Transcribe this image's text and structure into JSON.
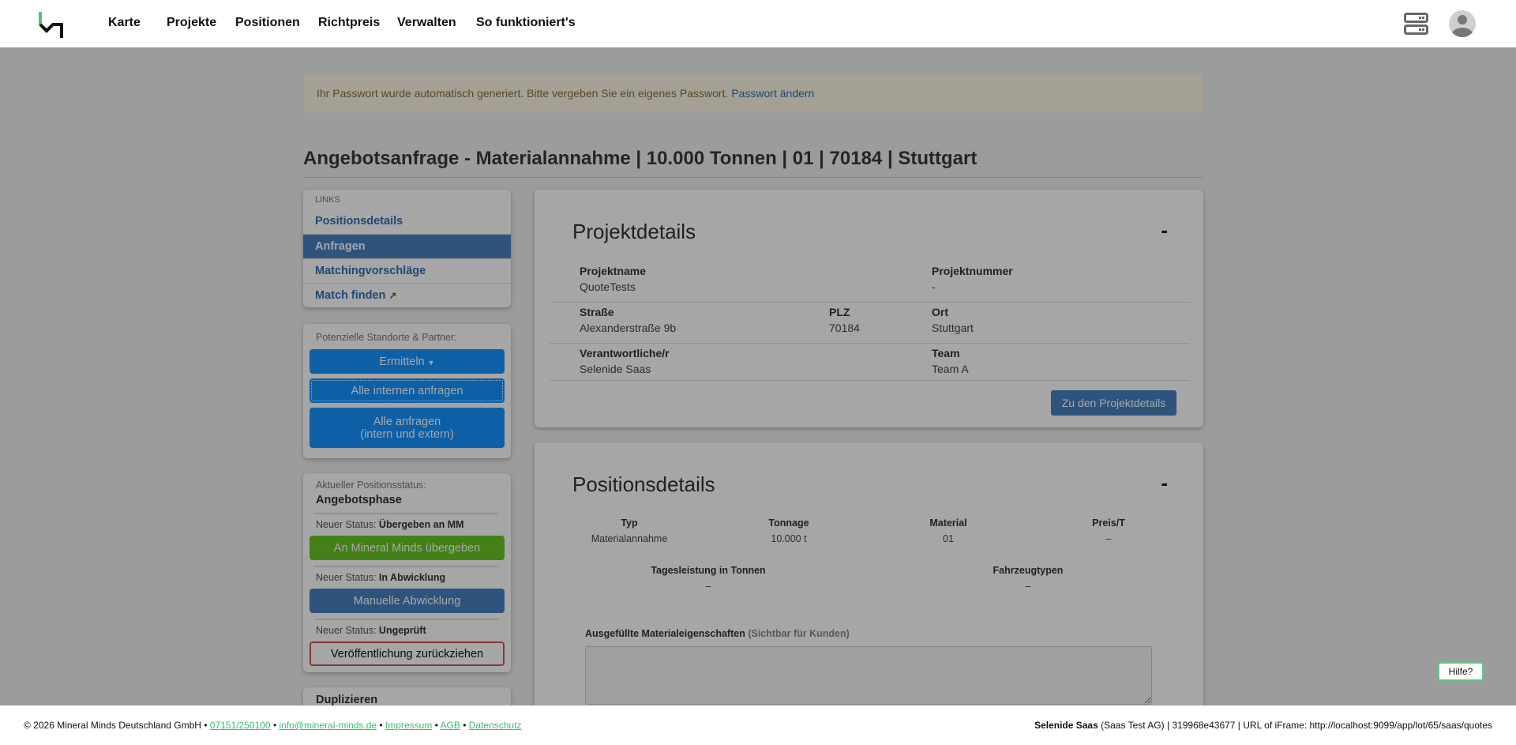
{
  "header": {
    "nav": [
      "Karte",
      "Projekte",
      "Positionen",
      "Richtpreis",
      "Verwalten",
      "So funktioniert's"
    ],
    "icons": [
      "logo-mm",
      "server-icon",
      "avatar-icon"
    ]
  },
  "alert": {
    "text": "Ihr Passwort wurde automatisch generiert. Bitte vergeben Sie ein eigenes Passwort.",
    "link": "Passwort ändern"
  },
  "page_title": "Angebotsanfrage - Materialannahme | 10.000 Tonnen | 01 | 70184 | Stuttgart",
  "links": {
    "heading": "LINKS",
    "items": [
      "Positionsdetails",
      "Anfragen",
      "Matchingvorschläge",
      "Match finden"
    ],
    "active": "Anfragen"
  },
  "partners": {
    "label": "Potenzielle Standorte & Partner:",
    "ermitteln": "Ermitteln",
    "intern": "Alle internen anfragen",
    "alle_1": "Alle anfragen",
    "alle_2": "(intern und extern)"
  },
  "status": {
    "label": "Aktueller Positionsstatus:",
    "current": "Angebotsphase",
    "new_prefix": "Neuer Status:",
    "s1": "Übergeben an MM",
    "b1": "An Mineral Minds übergeben",
    "s2": "In Abwicklung",
    "b2": "Manuelle Abwicklung",
    "s3": "Ungeprüft",
    "b3": "Veröffentlichung zurückziehen"
  },
  "duplicate": {
    "title": "Duplizieren"
  },
  "projekt": {
    "title": "Projektdetails",
    "toggle": "-",
    "projektname_l": "Projektname",
    "projektname": "QuoteTests",
    "projektnummer_l": "Projektnummer",
    "projektnummer": "-",
    "strasse_l": "Straße",
    "strasse": "Alexanderstraße 9b",
    "plz_l": "PLZ",
    "plz": "70184",
    "ort_l": "Ort",
    "ort": "Stuttgart",
    "verantw_l": "Verantwortliche/r",
    "verantw": "Selenide Saas",
    "team_l": "Team",
    "team": "Team A",
    "button": "Zu den Projektdetails"
  },
  "position": {
    "title": "Positionsdetails",
    "toggle": "-",
    "cols": [
      {
        "l": "Typ",
        "v": "Materialannahme"
      },
      {
        "l": "Tonnage",
        "v": "10.000 t"
      },
      {
        "l": "Material",
        "v": "01"
      },
      {
        "l": "Preis/T",
        "v": "–"
      }
    ],
    "cols2": [
      {
        "l": "Tagesleistung in Tonnen",
        "v": "–"
      },
      {
        "l": "Fahrzeugtypen",
        "v": "–"
      }
    ],
    "props_label": "Ausgefüllte Materialeigenschaften",
    "props_hint": "(Sichtbar für Kunden)",
    "props_value": ""
  },
  "footer": {
    "copyright": "© 2026 Mineral Minds Deutschland GmbH",
    "phone": "07151/250100",
    "email": "info@mineral-minds.de",
    "impressum": "Impressum",
    "agb": "AGB",
    "datenschutz": "Datenschutz",
    "sep": "•",
    "user": "Selenide Saas",
    "company": "(Saas Test AG) | 319968e43677 | URL of iFrame: http://localhost:9099/app/lot/65/saas/quotes"
  },
  "help": "Hilfe?"
}
